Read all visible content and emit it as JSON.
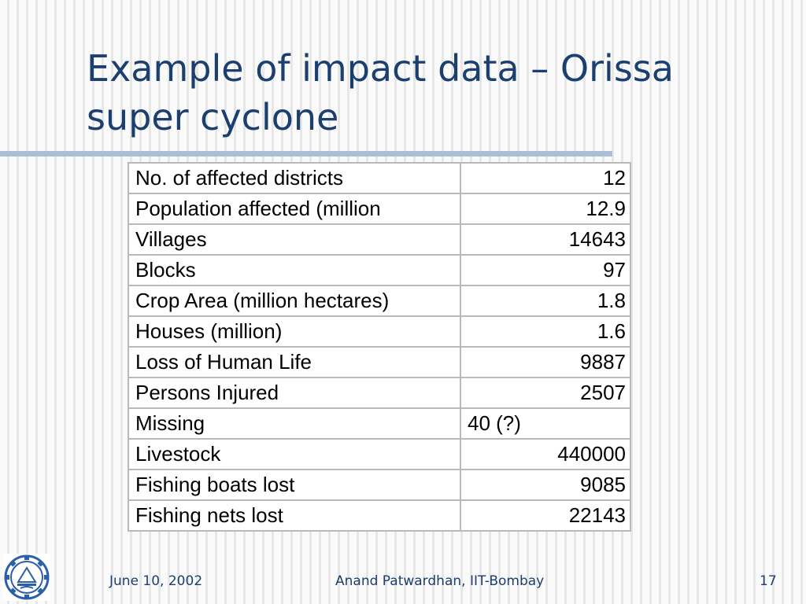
{
  "slide": {
    "title_line1": "Example of impact data – Orissa",
    "title_line2": "super cyclone"
  },
  "table": {
    "rows": [
      {
        "label": "No. of affected districts",
        "value": "12",
        "align": "right"
      },
      {
        "label": "Population affected (million",
        "value": "12.9",
        "align": "right"
      },
      {
        "label": "Villages",
        "value": "14643",
        "align": "right"
      },
      {
        "label": "Blocks",
        "value": "97",
        "align": "right"
      },
      {
        "label": "Crop Area (million hectares)",
        "value": "1.8",
        "align": "right"
      },
      {
        "label": "Houses (million)",
        "value": "1.6",
        "align": "right"
      },
      {
        "label": "Loss of Human Life",
        "value": "9887",
        "align": "right"
      },
      {
        "label": "Persons Injured",
        "value": "2507",
        "align": "right"
      },
      {
        "label": "Missing",
        "value": "40 (?)",
        "align": "left"
      },
      {
        "label": "Livestock",
        "value": "440000",
        "align": "right"
      },
      {
        "label": "Fishing boats lost",
        "value": "9085",
        "align": "right"
      },
      {
        "label": "Fishing nets lost",
        "value": "22143",
        "align": "right"
      }
    ]
  },
  "footer": {
    "date": "June 10, 2002",
    "author": "Anand Patwardhan, IIT-Bombay",
    "page_number": "17"
  },
  "logo": {
    "icon": "iit-bombay-logo",
    "color": "#2b5fa8"
  }
}
